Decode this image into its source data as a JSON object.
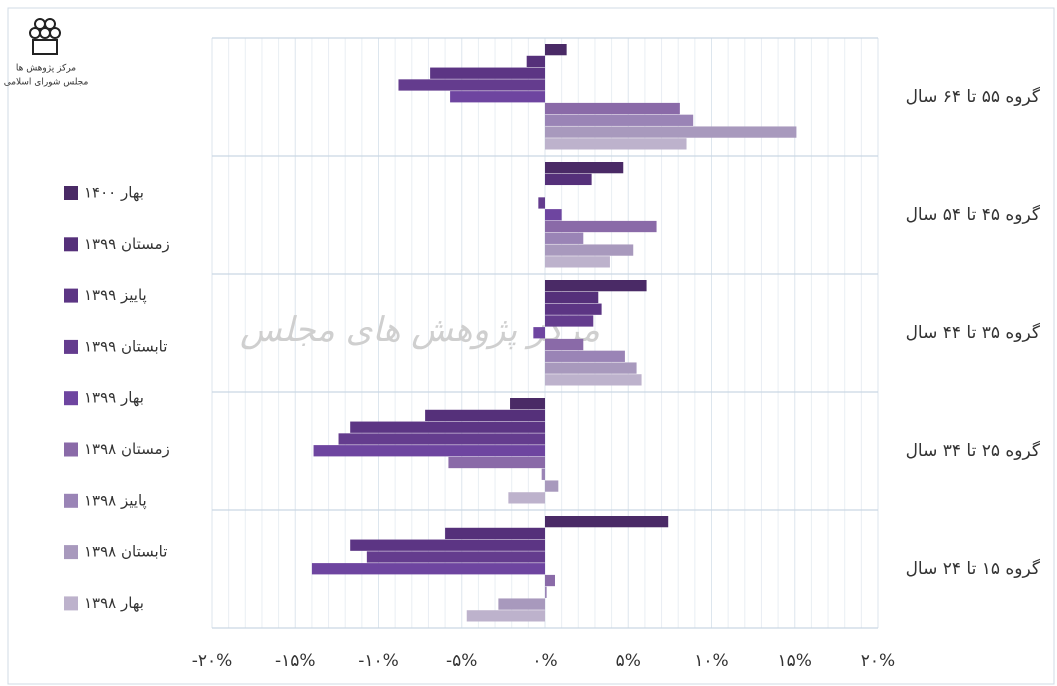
{
  "chart_data": {
    "type": "hbar",
    "watermark": "مرکز پژوهش های مجلس",
    "logo_text": [
      "مرکز پژوهش ها",
      "مجلس شورای اسلامی"
    ],
    "categories": [
      "گروه ۵۵ تا ۶۴ سال",
      "گروه ۴۵ تا ۵۴ سال",
      "گروه ۳۵ تا ۴۴ سال",
      "گروه ۲۵ تا ۳۴ سال",
      "گروه ۱۵ تا ۲۴ سال"
    ],
    "series": [
      {
        "name": "بهار ۱۴۰۰",
        "color": "#4a2a66",
        "values": [
          1.3,
          4.7,
          6.1,
          -2.1,
          7.4
        ]
      },
      {
        "name": "زمستان ۱۳۹۹",
        "color": "#55307a",
        "values": [
          -1.1,
          2.8,
          3.2,
          -7.2,
          -6.0
        ]
      },
      {
        "name": "پاییز ۱۳۹۹",
        "color": "#5c3584",
        "values": [
          -6.9,
          0,
          3.4,
          -11.7,
          -11.7
        ]
      },
      {
        "name": "تابستان ۱۳۹۹",
        "color": "#643c8e",
        "values": [
          -8.8,
          -0.4,
          2.9,
          -12.4,
          -10.7
        ]
      },
      {
        "name": "بهار ۱۳۹۹",
        "color": "#6e45a0",
        "values": [
          -5.7,
          1.0,
          -0.7,
          -13.9,
          -14.0
        ]
      },
      {
        "name": "زمستان ۱۳۹۸",
        "color": "#8a6aa8",
        "values": [
          8.1,
          6.7,
          2.3,
          -5.8,
          0.6
        ]
      },
      {
        "name": "پاییز ۱۳۹۸",
        "color": "#9a84b6",
        "values": [
          8.9,
          2.3,
          4.8,
          -0.2,
          0.1
        ]
      },
      {
        "name": "تابستان ۱۳۹۸",
        "color": "#a899bd",
        "values": [
          15.1,
          5.3,
          5.5,
          0.8,
          -2.8
        ]
      },
      {
        "name": "بهار ۱۳۹۸",
        "color": "#bdb2cc",
        "values": [
          8.5,
          3.9,
          5.8,
          -2.2,
          -4.7
        ]
      }
    ],
    "xlim": [
      -20,
      20
    ],
    "xticks": [
      {
        "value": -20,
        "label": "-۲۰%"
      },
      {
        "value": -15,
        "label": "-۱۵%"
      },
      {
        "value": -10,
        "label": "-۱۰%"
      },
      {
        "value": -5,
        "label": "-۵%"
      },
      {
        "value": 0,
        "label": "۰%"
      },
      {
        "value": 5,
        "label": "۵%"
      },
      {
        "value": 10,
        "label": "۱۰%"
      },
      {
        "value": 15,
        "label": "۱۵%"
      },
      {
        "value": 20,
        "label": "۲۰%"
      }
    ],
    "grid": true
  }
}
